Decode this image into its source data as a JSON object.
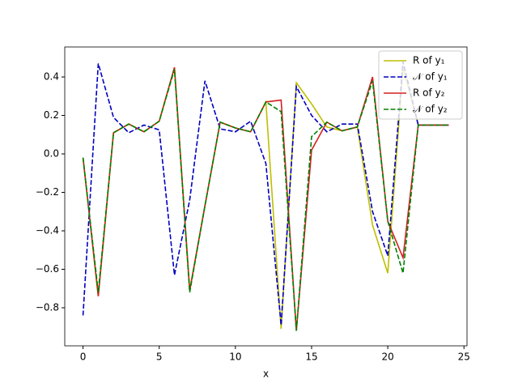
{
  "chart_data": {
    "type": "line",
    "x_label": "x",
    "x": [
      0,
      1,
      2,
      3,
      4,
      5,
      6,
      7,
      8,
      9,
      10,
      11,
      12,
      13,
      14,
      15,
      16,
      17,
      18,
      19,
      20,
      21,
      22,
      23,
      24
    ],
    "series": [
      {
        "name": "R of y₁",
        "color": "#bfbf00",
        "dash": "solid",
        "values": [
          -0.02,
          -0.74,
          0.11,
          0.155,
          0.115,
          0.17,
          0.45,
          -0.71,
          -0.27,
          0.165,
          0.135,
          0.115,
          0.27,
          -0.91,
          0.37,
          0.26,
          0.14,
          0.12,
          0.14,
          -0.37,
          -0.62,
          0.45,
          0.15,
          0.15,
          0.15
        ]
      },
      {
        "name": "𝒩 of y₁",
        "color": "#0000bf",
        "dash": "dashed",
        "values": [
          -0.84,
          0.47,
          0.19,
          0.11,
          0.15,
          0.125,
          -0.63,
          -0.24,
          0.38,
          0.13,
          0.115,
          0.17,
          -0.05,
          -0.89,
          0.35,
          0.2,
          0.115,
          0.155,
          0.155,
          -0.3,
          -0.53,
          0.48,
          0.15,
          0.15,
          0.15
        ]
      },
      {
        "name": "R of y₂",
        "color": "#d62020",
        "dash": "solid",
        "values": [
          -0.02,
          -0.74,
          0.11,
          0.155,
          0.115,
          0.17,
          0.45,
          -0.71,
          -0.27,
          0.165,
          0.135,
          0.115,
          0.27,
          0.28,
          -0.92,
          0.02,
          0.165,
          0.12,
          0.14,
          0.4,
          -0.35,
          -0.54,
          0.15,
          0.15,
          0.15
        ]
      },
      {
        "name": "𝒩 of y₂",
        "color": "#008000",
        "dash": "dashed",
        "values": [
          -0.02,
          -0.72,
          0.11,
          0.155,
          0.115,
          0.17,
          0.44,
          -0.72,
          -0.27,
          0.165,
          0.135,
          0.115,
          0.27,
          0.22,
          -0.92,
          0.09,
          0.165,
          0.12,
          0.14,
          0.38,
          -0.35,
          -0.62,
          0.15,
          0.15,
          0.15
        ]
      }
    ],
    "xlim": [
      -1.2,
      25.2
    ],
    "ylim": [
      -0.998,
      0.556
    ],
    "xticks": [
      0,
      5,
      10,
      15,
      20,
      25
    ],
    "yticks": [
      {
        "value": -0.8,
        "label": "−0.8"
      },
      {
        "value": -0.6,
        "label": "−0.6"
      },
      {
        "value": -0.4,
        "label": "−0.4"
      },
      {
        "value": -0.2,
        "label": "−0.2"
      },
      {
        "value": 0,
        "label": "0.0"
      },
      0.2,
      0.4
    ],
    "legend": "upper right",
    "grid": false
  }
}
